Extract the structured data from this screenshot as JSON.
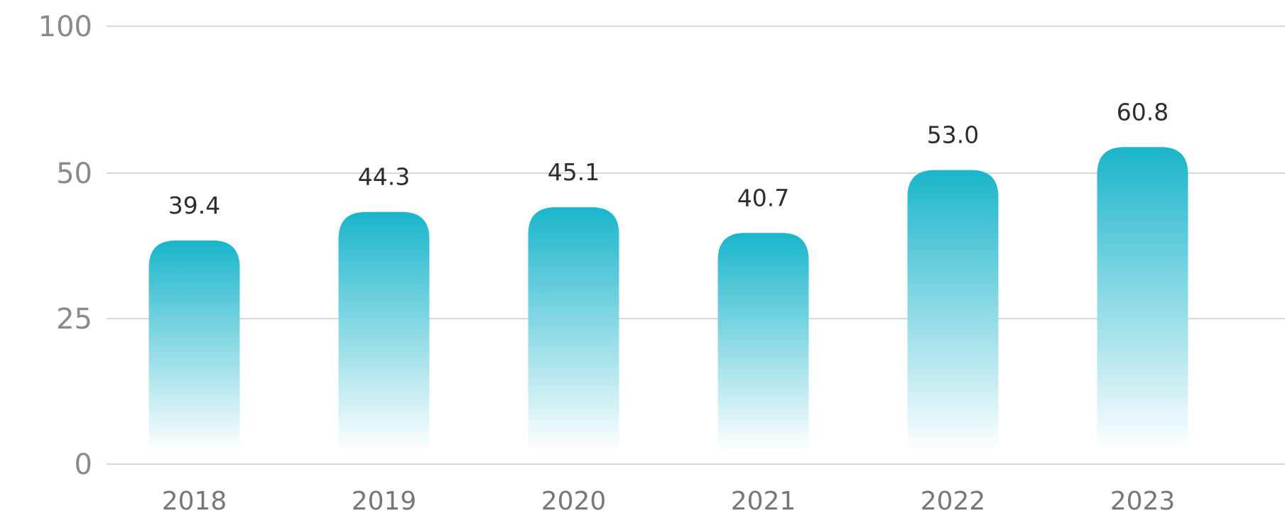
{
  "chart_data": {
    "type": "bar",
    "categories": [
      "2018",
      "2019",
      "2020",
      "2021",
      "2022",
      "2023"
    ],
    "values": [
      39.4,
      44.3,
      45.1,
      40.7,
      53.0,
      60.8
    ],
    "value_labels": [
      "39.4",
      "44.3",
      "45.1",
      "40.7",
      "53.0",
      "60.8"
    ],
    "y_ticks": [
      {
        "value": 0,
        "label": "0"
      },
      {
        "value": 25,
        "label": "25"
      },
      {
        "value": 50,
        "label": "50"
      },
      {
        "value": 100,
        "label": "100"
      }
    ],
    "ylim": [
      0,
      100
    ],
    "grid": true,
    "legend": "none",
    "title": "",
    "xlabel": "",
    "ylabel": ""
  },
  "colors": {
    "bar_top": "#1ab5cb",
    "bar_bottom": "#ffffff",
    "grid": "#d9d9d9"
  }
}
